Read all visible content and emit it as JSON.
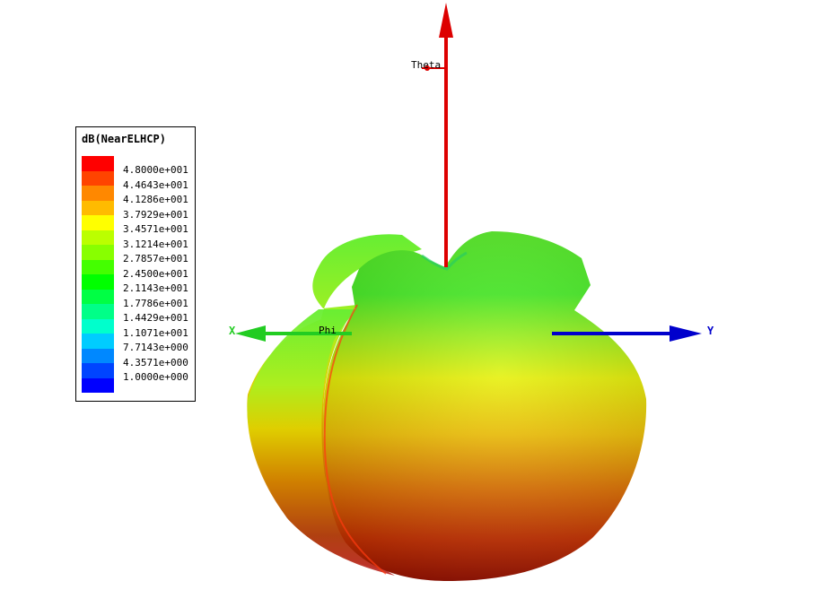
{
  "chart_data": {
    "type": "3d-radiation-pattern",
    "legend": {
      "title": "dB(NearELHCP)",
      "colors": [
        "#ff0000",
        "#ff4400",
        "#ff8800",
        "#ffbb00",
        "#ffff00",
        "#bbff00",
        "#88ff00",
        "#44ff00",
        "#00ff00",
        "#00ff44",
        "#00ff88",
        "#00ffcc",
        "#00ccff",
        "#0088ff",
        "#0044ff",
        "#0000ff"
      ],
      "tick_labels": [
        "4.8000e+001",
        "4.4643e+001",
        "4.1286e+001",
        "3.7929e+001",
        "3.4571e+001",
        "3.1214e+001",
        "2.7857e+001",
        "2.4500e+001",
        "2.1143e+001",
        "1.7786e+001",
        "1.4429e+001",
        "1.1071e+001",
        "7.7143e+000",
        "4.3571e+000",
        "1.0000e+000"
      ],
      "range": [
        1.0,
        48.0
      ]
    },
    "axes": {
      "z_label": "Theta",
      "phi_label": "Phi",
      "x_label": "X",
      "y_label": "Y",
      "x_color": "#22cc22",
      "y_color": "#0000cc",
      "z_color": "#dd0000"
    }
  }
}
